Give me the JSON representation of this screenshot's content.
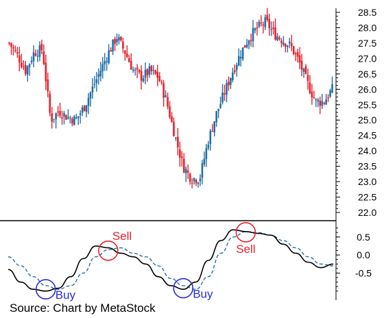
{
  "source": "Source: Chart by MetaStock",
  "colors": {
    "up": "#1f6fa8",
    "down": "#e8202a",
    "buy": "#2a2ae0",
    "sell": "#e8202a",
    "signal": "#1f6fa8",
    "oscillator": "#000000"
  },
  "chart_data": [
    {
      "type": "candlestick",
      "panel": "price",
      "ylim": [
        22.0,
        28.5
      ],
      "y_ticks": [
        "28.5",
        "28.0",
        "27.5",
        "27.0",
        "26.5",
        "26.0",
        "25.5",
        "25.0",
        "24.5",
        "24.0",
        "23.5",
        "23.0",
        "22.5",
        "22.0"
      ],
      "close_path": [
        27.5,
        27.1,
        26.6,
        27.2,
        27.3,
        25.0,
        25.3,
        25.1,
        25.0,
        25.4,
        26.0,
        26.6,
        27.2,
        27.7,
        27.2,
        26.6,
        26.4,
        26.6,
        26.4,
        25.6,
        24.5,
        23.5,
        23.1,
        23.1,
        24.3,
        25.2,
        25.9,
        26.6,
        27.2,
        27.7,
        28.0,
        28.2,
        27.8,
        27.6,
        27.4,
        26.9,
        26.2,
        25.6,
        25.6,
        26.0
      ]
    },
    {
      "type": "line",
      "panel": "oscillator",
      "ylim": [
        -1.1,
        0.8
      ],
      "y_ticks": [
        "0.5",
        "0.0",
        "-0.5"
      ],
      "series": [
        {
          "style": "solid",
          "values": [
            -0.4,
            -0.75,
            -0.95,
            -1.0,
            -0.92,
            -0.6,
            -0.1,
            0.25,
            0.2,
            0.05,
            -0.05,
            -0.25,
            -0.6,
            -0.85,
            -0.95,
            -0.75,
            -0.15,
            0.4,
            0.7,
            0.65,
            0.6,
            0.55,
            0.3,
            0.05,
            -0.2,
            -0.35,
            -0.25
          ]
        },
        {
          "style": "dashed",
          "values": [
            -0.05,
            -0.3,
            -0.6,
            -0.85,
            -0.95,
            -0.85,
            -0.5,
            -0.05,
            0.15,
            0.2,
            0.05,
            -0.05,
            -0.3,
            -0.65,
            -0.85,
            -0.95,
            -0.6,
            0.05,
            0.5,
            0.65,
            0.62,
            0.55,
            0.4,
            0.2,
            -0.05,
            -0.25,
            -0.3
          ]
        }
      ],
      "annotations": [
        {
          "label": "Buy",
          "at_index": 3,
          "value": -0.95
        },
        {
          "label": "Sell",
          "at_index": 8,
          "value": 0.12
        },
        {
          "label": "Buy",
          "at_index": 14,
          "value": -0.92
        },
        {
          "label": "Sell",
          "at_index": 19,
          "value": 0.63
        }
      ]
    }
  ]
}
